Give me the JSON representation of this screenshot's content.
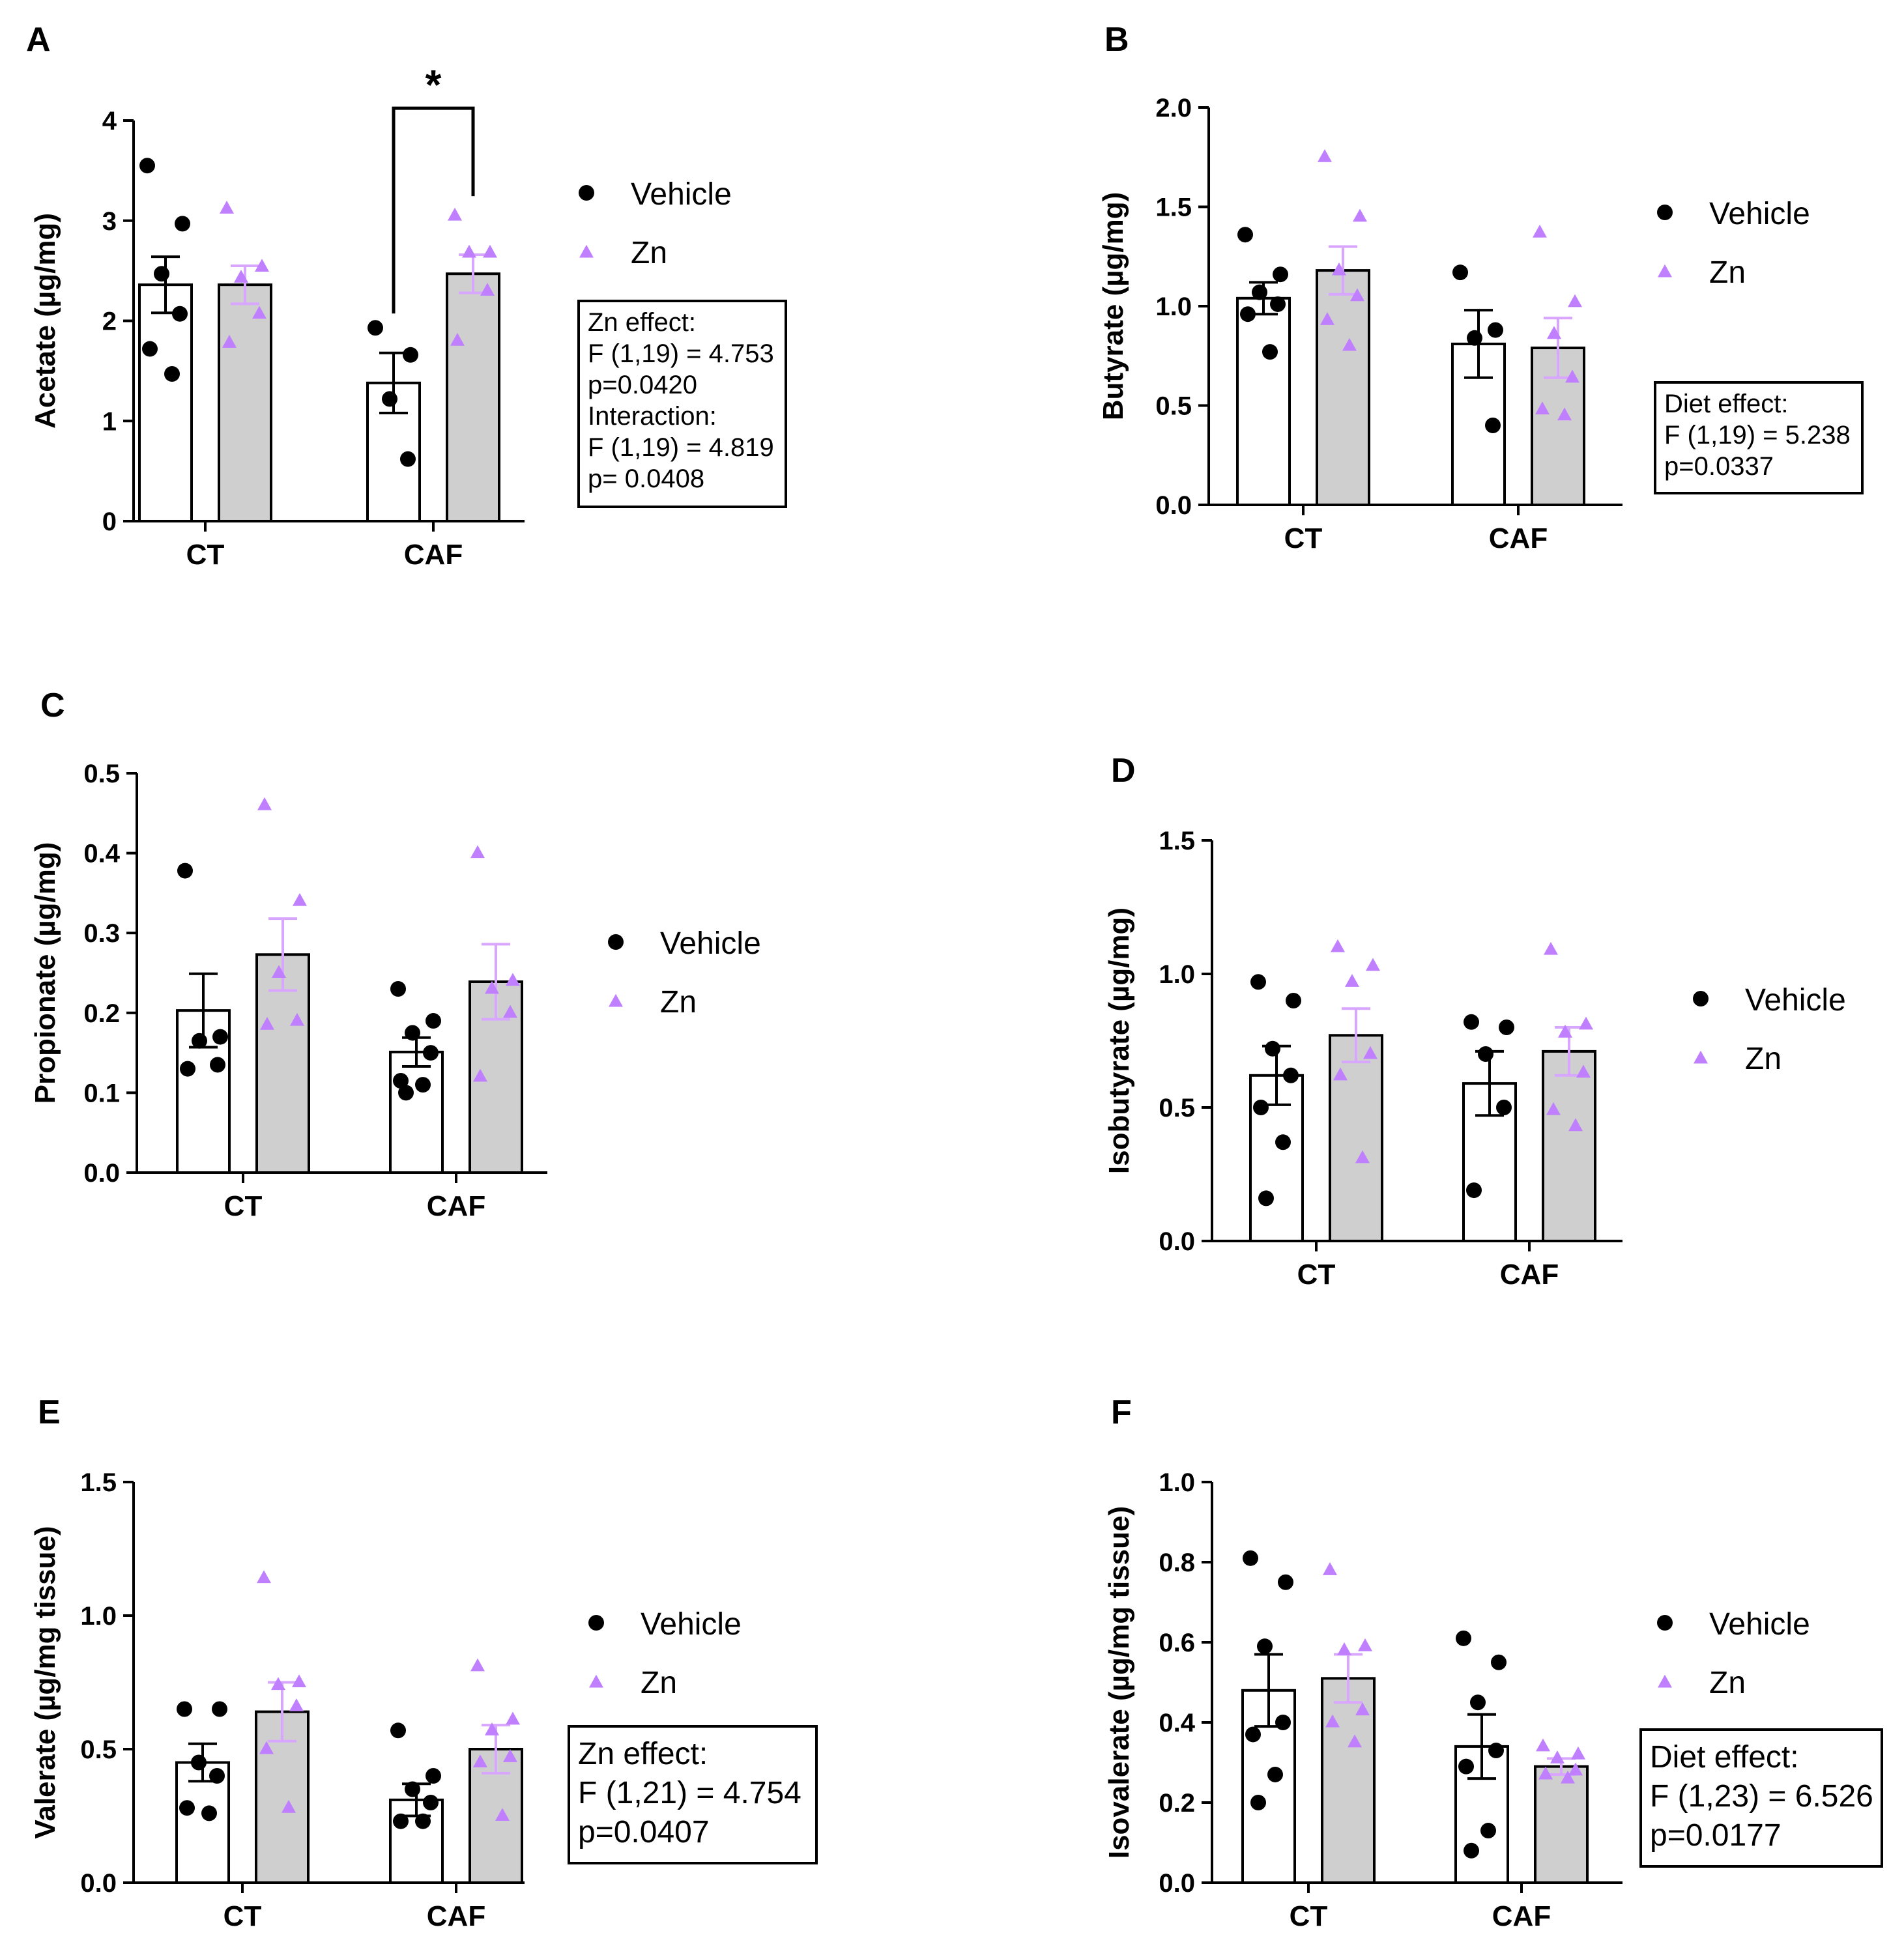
{
  "colors": {
    "vehicle": "#000000",
    "zn": "#bf7fff",
    "vehicle_bar": "#ffffff",
    "zn_bar": "#cfcfcf",
    "zn_err": "#d9a6ff"
  },
  "legend": {
    "vehicle": "Vehicle",
    "zn": "Zn"
  },
  "chart_data": [
    {
      "panel": "A",
      "type": "bar",
      "title": "",
      "ylabel": "Acetate (µg/mg)",
      "ylim": [
        0,
        4
      ],
      "yticks": [
        "0",
        "1",
        "2",
        "3",
        "4"
      ],
      "categories": [
        "CT",
        "CAF"
      ],
      "series": [
        {
          "name": "Vehicle",
          "values": [
            2.36,
            1.38
          ],
          "sem": [
            0.28,
            0.3
          ],
          "points": [
            [
              3.55,
              2.97,
              2.47,
              2.07,
              1.72,
              1.47
            ],
            [
              1.93,
              1.66,
              1.22,
              0.62
            ]
          ]
        },
        {
          "name": "Zn",
          "values": [
            2.36,
            2.47
          ],
          "sem": [
            0.19,
            0.19
          ],
          "points": [
            [
              3.12,
              2.54,
              2.43,
              2.07,
              1.78
            ],
            [
              3.05,
              2.68,
              2.68,
              2.3,
              1.8
            ]
          ]
        }
      ],
      "significance": {
        "label": "*",
        "between": [
          "CAF Vehicle",
          "CAF Zn"
        ]
      },
      "stats": [
        "Zn effect:",
        "F (1,19) = 4.753",
        "p=0.0420",
        "Interaction:",
        "F (1,19) = 4.819",
        "p= 0.0408"
      ]
    },
    {
      "panel": "B",
      "type": "bar",
      "title": "",
      "ylabel": "Butyrate (µg/mg)",
      "ylim": [
        0,
        2.0
      ],
      "yticks": [
        "0.0",
        "0.5",
        "1.0",
        "1.5",
        "2.0"
      ],
      "categories": [
        "CT",
        "CAF"
      ],
      "series": [
        {
          "name": "Vehicle",
          "values": [
            1.04,
            0.81
          ],
          "sem": [
            0.08,
            0.17
          ],
          "points": [
            [
              1.36,
              1.16,
              1.07,
              1.01,
              0.96,
              0.77
            ],
            [
              1.17,
              0.88,
              0.84,
              0.4
            ]
          ]
        },
        {
          "name": "Zn",
          "values": [
            1.18,
            0.79
          ],
          "sem": [
            0.12,
            0.15
          ],
          "points": [
            [
              1.75,
              1.45,
              1.18,
              1.05,
              0.93,
              0.8
            ],
            [
              1.37,
              1.02,
              0.86,
              0.64,
              0.48,
              0.45
            ]
          ]
        }
      ],
      "stats": [
        "Diet effect:",
        "F (1,19) = 5.238",
        "p=0.0337"
      ]
    },
    {
      "panel": "C",
      "type": "bar",
      "title": "",
      "ylabel": "Propionate (µg/mg)",
      "ylim": [
        0,
        0.5
      ],
      "yticks": [
        "0.0",
        "0.1",
        "0.2",
        "0.3",
        "0.4",
        "0.5"
      ],
      "categories": [
        "CT",
        "CAF"
      ],
      "series": [
        {
          "name": "Vehicle",
          "values": [
            0.203,
            0.151
          ],
          "sem": [
            0.046,
            0.018
          ],
          "points": [
            [
              0.378,
              0.17,
              0.165,
              0.135,
              0.13
            ],
            [
              0.23,
              0.19,
              0.175,
              0.15,
              0.115,
              0.11,
              0.1
            ]
          ]
        },
        {
          "name": "Zn",
          "values": [
            0.273,
            0.239
          ],
          "sem": [
            0.045,
            0.047
          ],
          "points": [
            [
              0.46,
              0.34,
              0.25,
              0.19,
              0.185
            ],
            [
              0.4,
              0.24,
              0.23,
              0.2,
              0.12
            ]
          ]
        }
      ]
    },
    {
      "panel": "D",
      "type": "bar",
      "title": "",
      "ylabel": "Isobutyrate (µg/mg)",
      "ylim": [
        0,
        1.5
      ],
      "yticks": [
        "0.0",
        "0.5",
        "1.0",
        "1.5"
      ],
      "categories": [
        "CT",
        "CAF"
      ],
      "series": [
        {
          "name": "Vehicle",
          "values": [
            0.62,
            0.59
          ],
          "sem": [
            0.11,
            0.12
          ],
          "points": [
            [
              0.97,
              0.9,
              0.72,
              0.62,
              0.5,
              0.37,
              0.16
            ],
            [
              0.82,
              0.8,
              0.7,
              0.5,
              0.19
            ]
          ]
        },
        {
          "name": "Zn",
          "values": [
            0.77,
            0.71
          ],
          "sem": [
            0.1,
            0.09
          ],
          "points": [
            [
              1.1,
              1.03,
              0.97,
              0.7,
              0.62,
              0.31
            ],
            [
              1.09,
              0.81,
              0.78,
              0.63,
              0.49,
              0.43
            ]
          ]
        }
      ]
    },
    {
      "panel": "E",
      "type": "bar",
      "title": "",
      "ylabel": "Valerate (µg/mg tissue)",
      "ylim": [
        0,
        1.5
      ],
      "yticks": [
        "0.0",
        "0.5",
        "1.0",
        "1.5"
      ],
      "categories": [
        "CT",
        "CAF"
      ],
      "series": [
        {
          "name": "Vehicle",
          "values": [
            0.45,
            0.31
          ],
          "sem": [
            0.07,
            0.06
          ],
          "points": [
            [
              0.65,
              0.65,
              0.45,
              0.4,
              0.28,
              0.26
            ],
            [
              0.57,
              0.4,
              0.35,
              0.3,
              0.23,
              0.23
            ]
          ]
        },
        {
          "name": "Zn",
          "values": [
            0.64,
            0.5
          ],
          "sem": [
            0.11,
            0.09
          ],
          "points": [
            [
              1.14,
              0.75,
              0.74,
              0.66,
              0.5,
              0.28
            ],
            [
              0.81,
              0.61,
              0.57,
              0.47,
              0.45,
              0.25
            ]
          ]
        }
      ],
      "stats": [
        "Zn effect:",
        "F (1,21) = 4.754",
        "p=0.0407"
      ]
    },
    {
      "panel": "F",
      "type": "bar",
      "title": "",
      "ylabel": "Isovalerate (µg/mg tissue)",
      "ylim": [
        0,
        1.0
      ],
      "yticks": [
        "0.0",
        "0.2",
        "0.4",
        "0.6",
        "0.8",
        "1.0"
      ],
      "categories": [
        "CT",
        "CAF"
      ],
      "series": [
        {
          "name": "Vehicle",
          "values": [
            0.48,
            0.34
          ],
          "sem": [
            0.09,
            0.08
          ],
          "points": [
            [
              0.81,
              0.75,
              0.59,
              0.4,
              0.37,
              0.27,
              0.2
            ],
            [
              0.61,
              0.55,
              0.45,
              0.33,
              0.29,
              0.13,
              0.08
            ]
          ]
        },
        {
          "name": "Zn",
          "values": [
            0.51,
            0.29
          ],
          "sem": [
            0.06,
            0.02
          ],
          "points": [
            [
              0.78,
              0.59,
              0.58,
              0.43,
              0.4,
              0.35
            ],
            [
              0.34,
              0.32,
              0.31,
              0.28,
              0.27,
              0.26
            ]
          ]
        }
      ],
      "stats": [
        "Diet effect:",
        "F (1,23) = 6.526",
        "p=0.0177"
      ]
    }
  ]
}
